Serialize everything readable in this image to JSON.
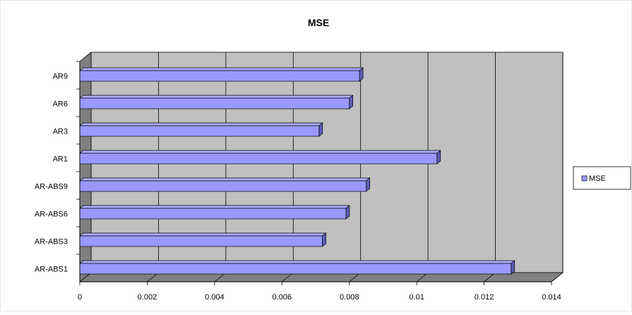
{
  "chart_data": {
    "type": "bar",
    "orientation": "horizontal",
    "style": "3d",
    "title": "MSE",
    "xlabel": "",
    "ylabel": "",
    "categories": [
      "AR9",
      "AR6",
      "AR3",
      "AR1",
      "AR-ABS9",
      "AR-ABS6",
      "AR-ABS3",
      "AR-ABS1"
    ],
    "series": [
      {
        "name": "MSE",
        "color": "#9999ff",
        "values": [
          0.0083,
          0.008,
          0.0071,
          0.0106,
          0.0085,
          0.0079,
          0.0072,
          0.0128
        ]
      }
    ],
    "xlim": [
      0,
      0.014
    ],
    "x_ticks": [
      "0",
      "0.002",
      "0.004",
      "0.006",
      "0.008",
      "0.01",
      "0.012",
      "0.014"
    ],
    "x_tick_values": [
      0,
      0.002,
      0.004,
      0.006,
      0.008,
      0.01,
      0.012,
      0.014
    ],
    "grid": true,
    "legend_position": "right",
    "colors": {
      "plot_back": "#c0c0c0",
      "plot_floor": "#808080",
      "plot_side": "#808080",
      "bar_front": "#9999ff",
      "bar_top": "#aeaeff",
      "bar_end": "#5c5cb8"
    }
  }
}
